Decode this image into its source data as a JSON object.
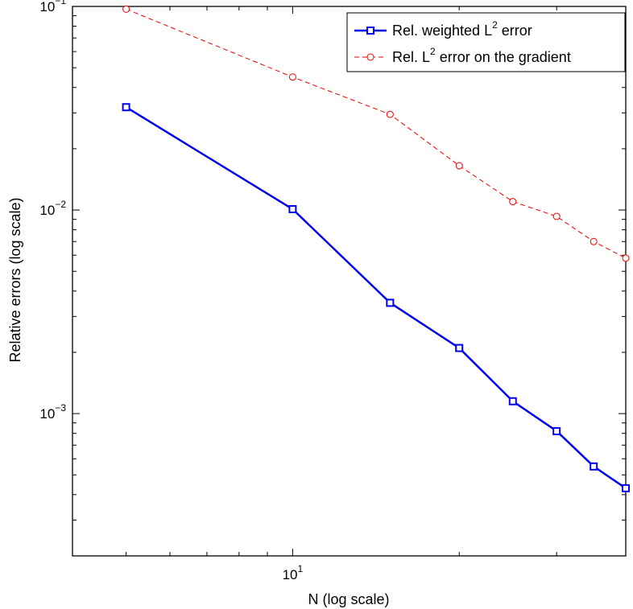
{
  "chart_data": {
    "type": "line",
    "title": "",
    "xlabel": "N (log scale)",
    "ylabel": "Relative errors (log scale)",
    "x_scale": "log",
    "y_scale": "log",
    "xlim": [
      4.0,
      40.0
    ],
    "ylim": [
      0.0002,
      0.1
    ],
    "grid": false,
    "legend_position": "top-right",
    "x_ticks": [
      {
        "value": 10,
        "base": "10",
        "exp": "1"
      }
    ],
    "y_ticks": [
      {
        "value": 0.1,
        "base": "10",
        "exp": "−1"
      },
      {
        "value": 0.01,
        "base": "10",
        "exp": "−2"
      },
      {
        "value": 0.001,
        "base": "10",
        "exp": "−3"
      }
    ],
    "series": [
      {
        "legend_prefix": "Rel. weighted L",
        "legend_sup": "2",
        "legend_suffix": " error",
        "color": "#0000ee",
        "line_style": "solid",
        "marker": "square",
        "x": [
          5,
          10,
          15,
          20,
          25,
          30,
          35,
          40
        ],
        "y": [
          0.032,
          0.0101,
          0.0035,
          0.0021,
          0.00115,
          0.00082,
          0.00055,
          0.00043
        ]
      },
      {
        "legend_prefix": "Rel. L",
        "legend_sup": "2",
        "legend_suffix": " error on the gradient",
        "color": "#ee0000",
        "line_style": "dashed",
        "marker": "circle",
        "x": [
          5,
          10,
          15,
          20,
          25,
          30,
          35,
          40
        ],
        "y": [
          0.097,
          0.045,
          0.0295,
          0.0165,
          0.011,
          0.0093,
          0.007,
          0.0058
        ]
      }
    ]
  }
}
